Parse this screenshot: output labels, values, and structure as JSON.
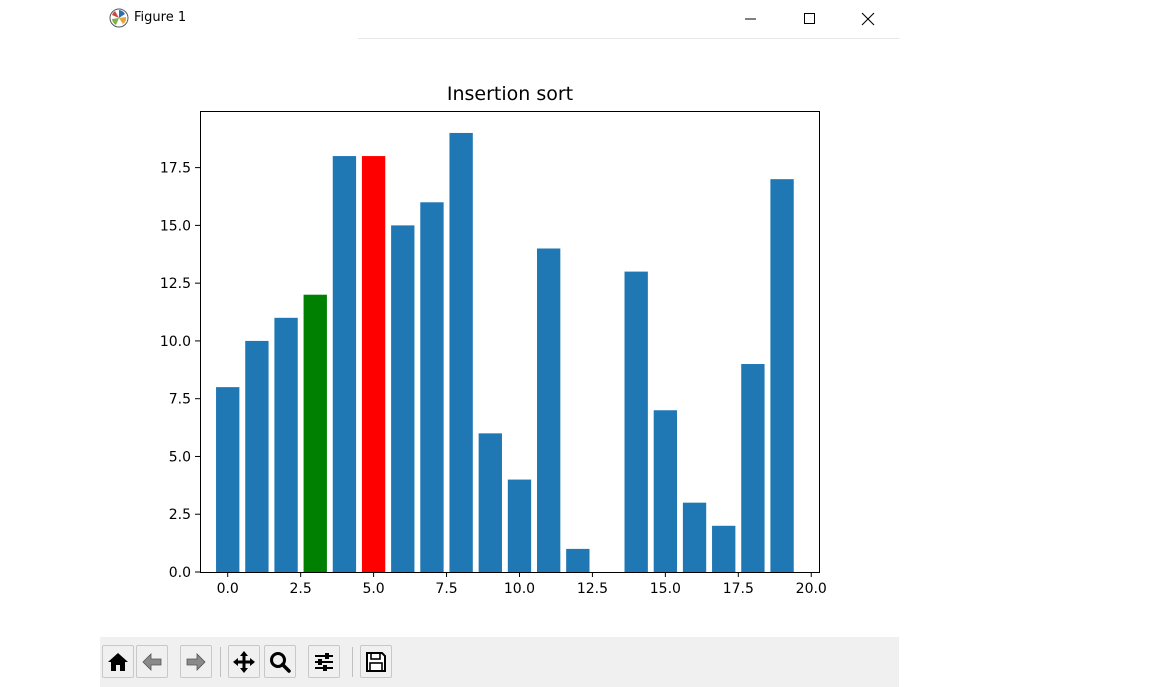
{
  "window": {
    "title": "Figure 1",
    "icons": {
      "app": "matplotlib-logo-icon",
      "minimize": "minimize-icon",
      "maximize": "maximize-icon",
      "close": "close-icon"
    }
  },
  "toolbar": {
    "buttons": [
      {
        "name": "home-button",
        "icon": "home-icon"
      },
      {
        "name": "back-button",
        "icon": "arrow-left-icon"
      },
      {
        "name": "forward-button",
        "icon": "arrow-right-icon"
      },
      {
        "name": "pan-button",
        "icon": "move-icon"
      },
      {
        "name": "zoom-button",
        "icon": "magnifier-icon"
      },
      {
        "name": "configure-subplots-button",
        "icon": "sliders-icon"
      },
      {
        "name": "save-button",
        "icon": "floppy-disk-icon"
      }
    ]
  },
  "chart_data": {
    "type": "bar",
    "title": "Insertion sort",
    "xlabel": "",
    "ylabel": "",
    "x": [
      0,
      1,
      2,
      3,
      4,
      5,
      6,
      7,
      8,
      9,
      10,
      11,
      12,
      13,
      14,
      15,
      16,
      17,
      18,
      19
    ],
    "values": [
      8,
      10,
      11,
      12,
      18,
      18,
      15,
      16,
      19,
      6,
      4,
      14,
      1,
      0,
      13,
      7,
      3,
      2,
      9,
      17
    ],
    "colors": [
      "#1f77b4",
      "#1f77b4",
      "#1f77b4",
      "#008000",
      "#1f77b4",
      "#ff0000",
      "#1f77b4",
      "#1f77b4",
      "#1f77b4",
      "#1f77b4",
      "#1f77b4",
      "#1f77b4",
      "#1f77b4",
      "#1f77b4",
      "#1f77b4",
      "#1f77b4",
      "#1f77b4",
      "#1f77b4",
      "#1f77b4",
      "#1f77b4"
    ],
    "xlim": [
      -0.95,
      20.3
    ],
    "ylim": [
      0,
      19.95
    ],
    "xticks": [
      0.0,
      2.5,
      5.0,
      7.5,
      10.0,
      12.5,
      15.0,
      17.5,
      20.0
    ],
    "xtick_labels": [
      "0.0",
      "2.5",
      "5.0",
      "7.5",
      "10.0",
      "12.5",
      "15.0",
      "17.5",
      "20.0"
    ],
    "yticks": [
      0.0,
      2.5,
      5.0,
      7.5,
      10.0,
      12.5,
      15.0,
      17.5
    ],
    "ytick_labels": [
      "0.0",
      "2.5",
      "5.0",
      "7.5",
      "10.0",
      "12.5",
      "15.0",
      "17.5"
    ],
    "grid": false,
    "legend": "none"
  }
}
